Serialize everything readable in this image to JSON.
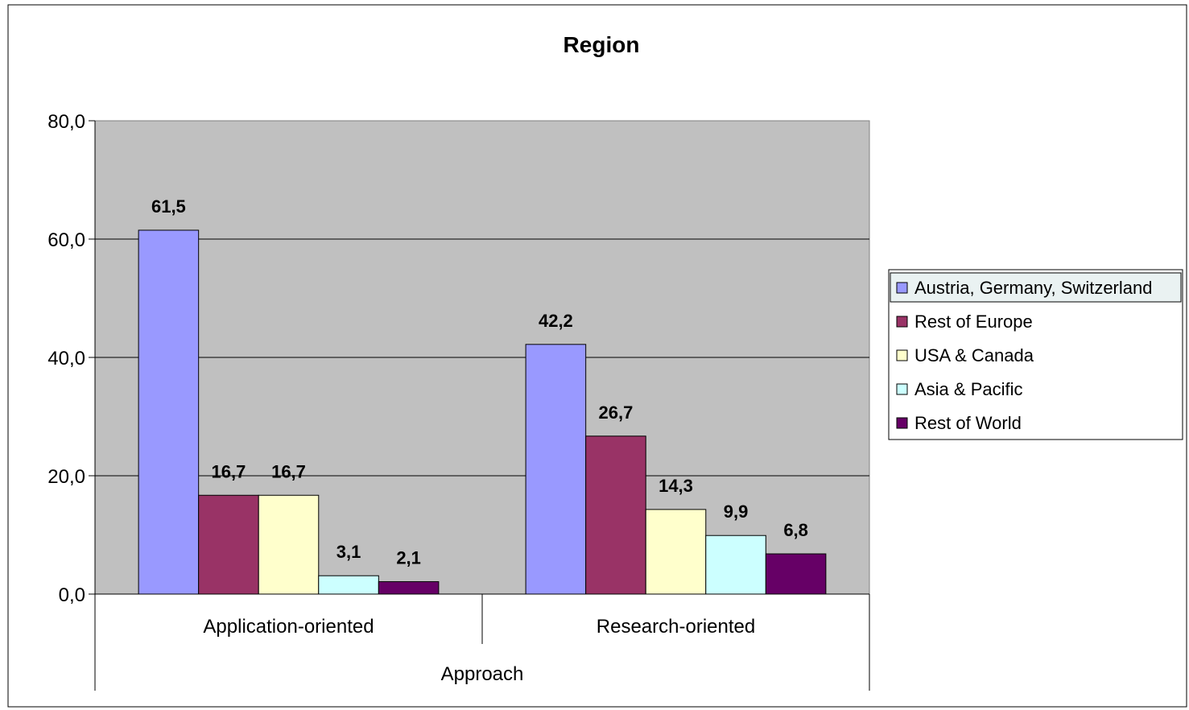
{
  "chart_data": {
    "type": "bar",
    "title": "Region",
    "xlabel": "Approach",
    "ylabel": "",
    "categories": [
      "Application-oriented",
      "Research-oriented"
    ],
    "series": [
      {
        "name": "Austria, Germany, Switzerland",
        "color": "#9999ff",
        "values": [
          61.5,
          42.2
        ],
        "labels": [
          "61,5",
          "42,2"
        ]
      },
      {
        "name": "Rest of Europe",
        "color": "#993366",
        "values": [
          16.7,
          26.7
        ],
        "labels": [
          "16,7",
          "26,7"
        ]
      },
      {
        "name": "USA & Canada",
        "color": "#ffffcc",
        "values": [
          16.7,
          14.3
        ],
        "labels": [
          "16,7",
          "14,3"
        ]
      },
      {
        "name": "Asia & Pacific",
        "color": "#ccffff",
        "values": [
          3.1,
          9.9
        ],
        "labels": [
          "3,1",
          "9,9"
        ]
      },
      {
        "name": "Rest of World",
        "color": "#660066",
        "values": [
          2.1,
          6.8
        ],
        "labels": [
          "2,1",
          "6,8"
        ]
      }
    ],
    "ylim": [
      0,
      80
    ],
    "yticks": [
      {
        "value": 0,
        "label": "0,0"
      },
      {
        "value": 20,
        "label": "20,0"
      },
      {
        "value": 40,
        "label": "40,0"
      },
      {
        "value": 60,
        "label": "60,0"
      },
      {
        "value": 80,
        "label": "80,0"
      }
    ],
    "grid": true,
    "plot_background": "#c0c0c0",
    "legend_position": "right"
  }
}
